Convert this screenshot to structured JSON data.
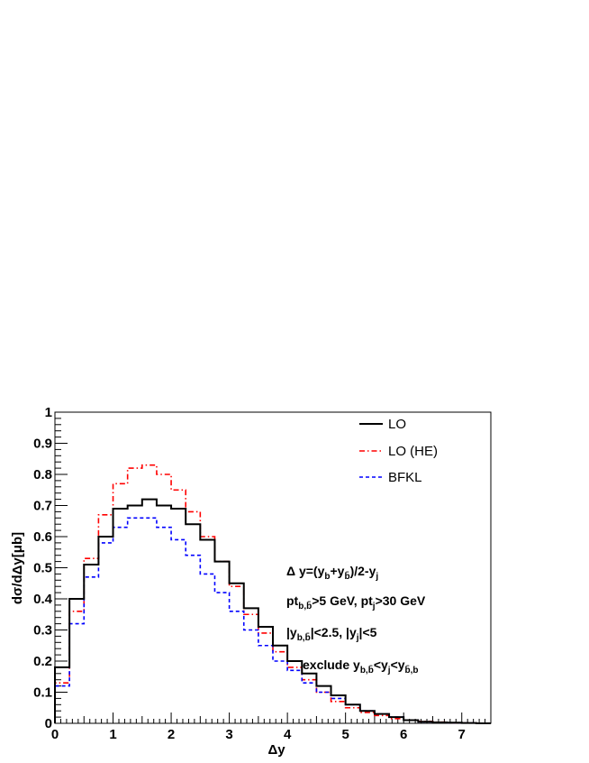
{
  "chart_data": {
    "type": "line",
    "step": true,
    "bin_edges": [
      0,
      0.25,
      0.5,
      0.75,
      1.0,
      1.25,
      1.5,
      1.75,
      2.0,
      2.25,
      2.5,
      2.75,
      3.0,
      3.25,
      3.5,
      3.75,
      4.0,
      4.25,
      4.5,
      4.75,
      5.0,
      5.25,
      5.5,
      5.75,
      6.0,
      6.25,
      6.5,
      6.75,
      7.0,
      7.25,
      7.5
    ],
    "series": [
      {
        "name": "LO",
        "color": "#000000",
        "style": "solid",
        "values": [
          0.18,
          0.4,
          0.51,
          0.6,
          0.69,
          0.7,
          0.72,
          0.7,
          0.69,
          0.64,
          0.59,
          0.52,
          0.45,
          0.37,
          0.31,
          0.25,
          0.2,
          0.16,
          0.12,
          0.09,
          0.06,
          0.04,
          0.03,
          0.02,
          0.01,
          0.005,
          0.003,
          0.002,
          0.001,
          0.0
        ]
      },
      {
        "name": "LO (HE)",
        "color": "#ff0000",
        "style": "dashdot",
        "values": [
          0.13,
          0.36,
          0.53,
          0.67,
          0.77,
          0.82,
          0.83,
          0.8,
          0.75,
          0.68,
          0.6,
          0.52,
          0.44,
          0.35,
          0.29,
          0.23,
          0.18,
          0.14,
          0.1,
          0.07,
          0.05,
          0.035,
          0.025,
          0.015,
          0.01,
          0.006,
          0.004,
          0.002,
          0.001,
          0.0
        ]
      },
      {
        "name": "BFKL",
        "color": "#0000ff",
        "style": "dashed",
        "values": [
          0.12,
          0.32,
          0.47,
          0.58,
          0.63,
          0.66,
          0.66,
          0.63,
          0.59,
          0.54,
          0.48,
          0.42,
          0.36,
          0.3,
          0.25,
          0.2,
          0.17,
          0.13,
          0.1,
          0.08,
          0.06,
          0.04,
          0.03,
          0.02,
          0.01,
          0.005,
          0.003,
          0.002,
          0.001,
          0.0
        ]
      }
    ],
    "title": "",
    "xlabel": "Δy",
    "ylabel": "dσ/dΔy[μb]",
    "xlim": [
      0,
      7.5
    ],
    "ylim": [
      0,
      1
    ],
    "x_ticks": [
      "0",
      "1",
      "2",
      "3",
      "4",
      "5",
      "6",
      "7"
    ],
    "y_ticks": [
      "0",
      "0.1",
      "0.2",
      "0.3",
      "0.4",
      "0.5",
      "0.6",
      "0.7",
      "0.8",
      "0.9",
      "1"
    ],
    "grid": false,
    "legend_position": "top-right",
    "annotations": [
      "Δ y=(y_b+y_b̄)/2-y_j",
      "pt_b,b̄>5 GeV, pt_j>30 GeV",
      "|y_b,b̄|<2.5, |y_j|<5",
      "exclude y_b,b̄<y_j<y_b̄,b"
    ]
  }
}
